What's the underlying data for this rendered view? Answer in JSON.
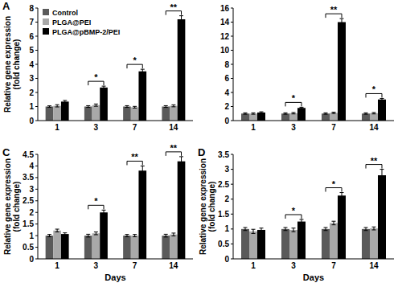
{
  "chart_data": [
    {
      "type": "bar",
      "title": "A",
      "ylabel": [
        "Relative gene expression",
        "(fold change)"
      ],
      "categories": [
        "1",
        "3",
        "7",
        "14"
      ],
      "series": [
        {
          "name": "Control",
          "color": "#5a5a5a",
          "values": [
            1,
            1,
            1,
            1
          ],
          "errors": [
            0.05,
            0.06,
            0.06,
            0.06
          ]
        },
        {
          "name": "PLGA@PEI",
          "color": "#a9a9a9",
          "values": [
            1.05,
            1.1,
            0.95,
            1.05
          ],
          "errors": [
            0.08,
            0.08,
            0.06,
            0.07
          ]
        },
        {
          "name": "PLGA@pBMP-2/PEI",
          "color": "#000000",
          "values": [
            1.35,
            2.35,
            3.5,
            7.2
          ],
          "errors": [
            0.08,
            0.1,
            0.15,
            0.25
          ]
        }
      ],
      "ylim": [
        0,
        8
      ],
      "yticks": [
        0,
        1,
        2,
        3,
        4,
        5,
        6,
        7,
        8
      ],
      "grid": false,
      "legend": "top-left",
      "annotations": [
        {
          "x": "3",
          "text": "*"
        },
        {
          "x": "7",
          "text": "*"
        },
        {
          "x": "14",
          "text": "**"
        }
      ]
    },
    {
      "type": "bar",
      "categories": [
        "1",
        "3",
        "7",
        "14"
      ],
      "series": [
        {
          "name": "Control",
          "color": "#5a5a5a",
          "values": [
            1,
            1,
            1,
            1
          ],
          "errors": [
            0.1,
            0.1,
            0.1,
            0.1
          ]
        },
        {
          "name": "PLGA@PEI",
          "color": "#a9a9a9",
          "values": [
            1,
            1.05,
            1.1,
            1.05
          ],
          "errors": [
            0.1,
            0.1,
            0.1,
            0.1
          ]
        },
        {
          "name": "PLGA@pBMP-2/PEI",
          "color": "#000000",
          "values": [
            1.15,
            1.8,
            14,
            3
          ],
          "errors": [
            0.1,
            0.1,
            0.5,
            0.15
          ]
        }
      ],
      "ylim": [
        0,
        16
      ],
      "yticks": [
        0,
        2,
        4,
        6,
        8,
        10,
        12,
        14,
        16
      ],
      "grid": false,
      "annotations": [
        {
          "x": "3",
          "text": "*"
        },
        {
          "x": "7",
          "text": "**"
        },
        {
          "x": "14",
          "text": "*"
        }
      ]
    },
    {
      "type": "bar",
      "title": "C",
      "ylabel": [
        "Relative gene expression",
        "(fold change)"
      ],
      "xlabel": "Days",
      "categories": [
        "1",
        "3",
        "7",
        "14"
      ],
      "series": [
        {
          "name": "Control",
          "color": "#5a5a5a",
          "values": [
            1,
            1,
            1,
            1
          ],
          "errors": [
            0.05,
            0.06,
            0.05,
            0.06
          ]
        },
        {
          "name": "PLGA@PEI",
          "color": "#a9a9a9",
          "values": [
            1.22,
            1.1,
            1.0,
            1.05
          ],
          "errors": [
            0.06,
            0.06,
            0.05,
            0.06
          ]
        },
        {
          "name": "PLGA@pBMP-2/PEI",
          "color": "#000000",
          "values": [
            1.07,
            2.0,
            3.8,
            4.2
          ],
          "errors": [
            0.05,
            0.1,
            0.2,
            0.2
          ]
        }
      ],
      "ylim": [
        0,
        4.5
      ],
      "yticks": [
        0,
        0.5,
        1,
        1.5,
        2,
        2.5,
        3,
        3.5,
        4,
        4.5
      ],
      "grid": false,
      "annotations": [
        {
          "x": "3",
          "text": "*"
        },
        {
          "x": "7",
          "text": "**"
        },
        {
          "x": "14",
          "text": "**"
        }
      ]
    },
    {
      "type": "bar",
      "title": "D",
      "ylabel": [
        "Relative gene expression",
        "(fold change)"
      ],
      "xlabel": "Days",
      "categories": [
        "1",
        "3",
        "7",
        "14"
      ],
      "series": [
        {
          "name": "Control",
          "color": "#5a5a5a",
          "values": [
            1,
            1,
            1,
            1
          ],
          "errors": [
            0.05,
            0.05,
            0.05,
            0.05
          ]
        },
        {
          "name": "PLGA@PEI",
          "color": "#a9a9a9",
          "values": [
            0.92,
            0.97,
            1.2,
            1.02
          ],
          "errors": [
            0.07,
            0.06,
            0.06,
            0.05
          ]
        },
        {
          "name": "PLGA@pBMP-2/PEI",
          "color": "#000000",
          "values": [
            0.97,
            1.25,
            2.12,
            2.8
          ],
          "errors": [
            0.06,
            0.07,
            0.1,
            0.2
          ]
        }
      ],
      "ylim": [
        0,
        3.5
      ],
      "yticks": [
        0,
        0.5,
        1,
        1.5,
        2,
        2.5,
        3,
        3.5
      ],
      "grid": false,
      "annotations": [
        {
          "x": "3",
          "text": "*"
        },
        {
          "x": "7",
          "text": "*"
        },
        {
          "x": "14",
          "text": "**"
        }
      ]
    }
  ]
}
